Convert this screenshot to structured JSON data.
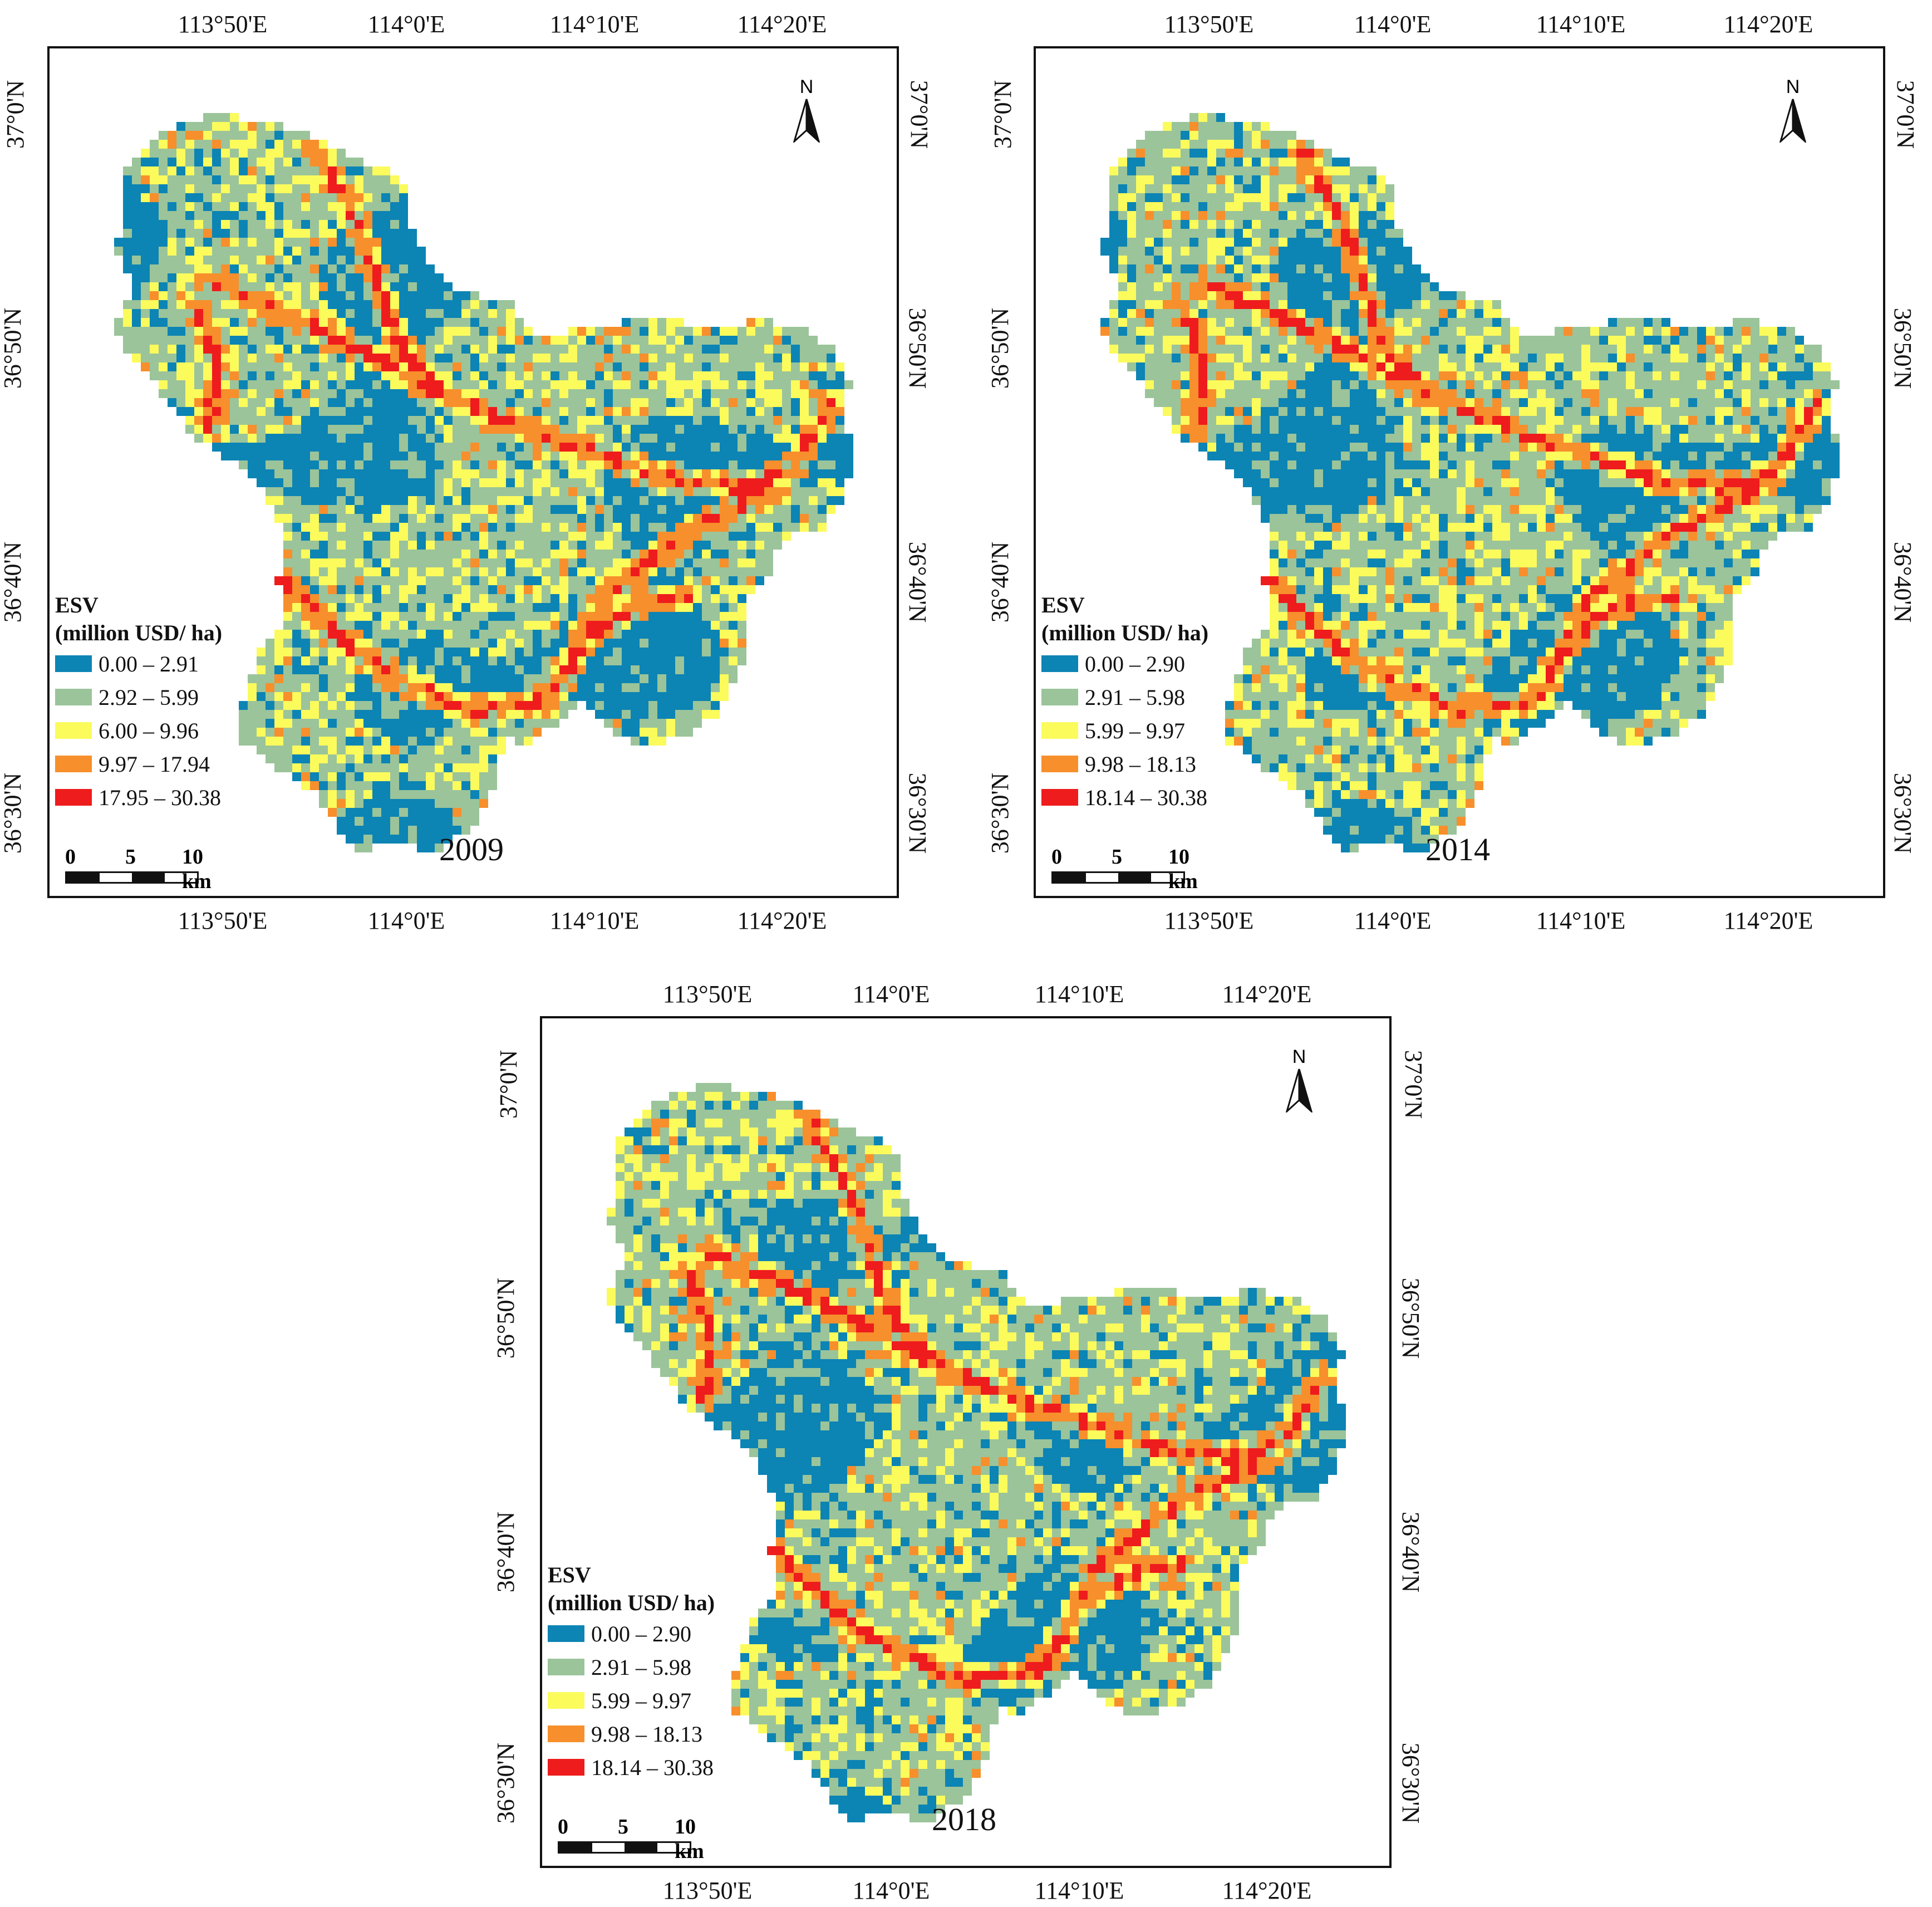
{
  "colors": {
    "class1": "#0c84b4",
    "class2": "#9bc49a",
    "class3": "#fbfb5c",
    "class4": "#f78f2c",
    "class5": "#ee1c1c"
  },
  "axes": {
    "lon_labels": [
      "113°50'E",
      "114°0'E",
      "114°10'E",
      "114°20'E"
    ],
    "lat_labels": [
      "37°0'N",
      "36°50'N",
      "36°40'N",
      "36°30'N"
    ]
  },
  "north_arrow": {
    "letter": "N",
    "icon": "north-arrow-icon"
  },
  "scale_bar": {
    "t0": "0",
    "t1": "5",
    "t2": "10 km"
  },
  "legend_title_1": "ESV",
  "legend_title_2": "(million USD/ ha)",
  "panels": [
    {
      "year": "2009",
      "legend": [
        "0.00 – 2.91",
        "2.92 – 5.99",
        "6.00 – 9.96",
        "9.97 – 17.94",
        "17.95 – 30.38"
      ]
    },
    {
      "year": "2014",
      "legend": [
        "0.00 – 2.90",
        "2.91 – 5.98",
        "5.99 – 9.97",
        "9.98 – 18.13",
        "18.14 – 30.38"
      ]
    },
    {
      "year": "2018",
      "legend": [
        "0.00 – 2.90",
        "2.91 – 5.98",
        "5.99 – 9.97",
        "9.98 – 18.13",
        "18.14 – 30.38"
      ]
    }
  ]
}
